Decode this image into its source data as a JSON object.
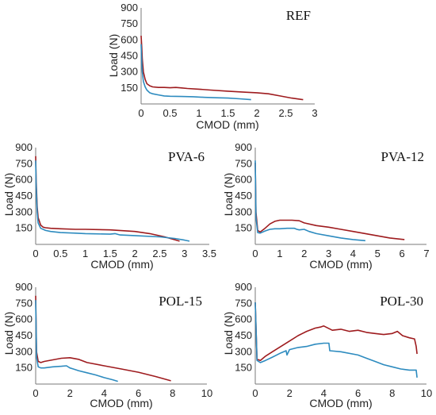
{
  "chart_data": [
    {
      "type": "line",
      "title": "REF",
      "xlabel": "CMOD (mm)",
      "ylabel": "Load (N)",
      "xlim": [
        0,
        3
      ],
      "ylim": [
        0,
        900
      ],
      "xticks": [
        "0",
        "0.5",
        "1",
        "1.5",
        "2",
        "2.5",
        "3"
      ],
      "yticks": [
        "900",
        "750",
        "600",
        "450",
        "300",
        "150"
      ],
      "grid": false,
      "series": [
        {
          "color": "#9e1b1e",
          "x": [
            0,
            0.01,
            0.02,
            0.04,
            0.07,
            0.1,
            0.15,
            0.2,
            0.3,
            0.4,
            0.5,
            0.6,
            0.7,
            0.8,
            1.0,
            1.2,
            1.5,
            1.8,
            2.0,
            2.2,
            2.4,
            2.6,
            2.8
          ],
          "y": [
            640,
            550,
            420,
            300,
            230,
            190,
            170,
            160,
            155,
            155,
            152,
            155,
            150,
            145,
            138,
            130,
            120,
            110,
            105,
            95,
            75,
            55,
            40
          ]
        },
        {
          "color": "#2d8bbf",
          "x": [
            0,
            0.01,
            0.02,
            0.04,
            0.07,
            0.1,
            0.15,
            0.2,
            0.3,
            0.4,
            0.5,
            0.7,
            0.9,
            1.1,
            1.3,
            1.5,
            1.7,
            1.9
          ],
          "y": [
            560,
            420,
            300,
            210,
            160,
            130,
            105,
            95,
            85,
            75,
            72,
            70,
            68,
            62,
            58,
            55,
            48,
            40
          ]
        }
      ]
    },
    {
      "type": "line",
      "title": "PVA-6",
      "xlabel": "CMOD (mm)",
      "ylabel": "Load (N)",
      "xlim": [
        0,
        3.5
      ],
      "ylim": [
        0,
        900
      ],
      "xticks": [
        "0",
        "0.5",
        "1",
        "1.5",
        "2",
        "2.5",
        "3",
        "3.5"
      ],
      "yticks": [
        "900",
        "750",
        "600",
        "450",
        "300",
        "150"
      ],
      "grid": false,
      "series": [
        {
          "color": "#9e1b1e",
          "x": [
            0,
            0.01,
            0.03,
            0.05,
            0.1,
            0.15,
            0.2,
            0.3,
            0.5,
            0.8,
            1.0,
            1.5,
            2.0,
            2.3,
            2.6,
            2.9
          ],
          "y": [
            820,
            600,
            350,
            250,
            180,
            160,
            155,
            150,
            145,
            140,
            140,
            135,
            120,
            100,
            70,
            30
          ]
        },
        {
          "color": "#2d8bbf",
          "x": [
            0,
            0.01,
            0.03,
            0.05,
            0.1,
            0.2,
            0.3,
            0.5,
            0.8,
            1.0,
            1.2,
            1.5,
            1.6,
            1.7,
            2.0,
            2.5,
            2.8,
            3.0,
            3.1
          ],
          "y": [
            780,
            550,
            300,
            200,
            150,
            130,
            120,
            110,
            105,
            100,
            98,
            95,
            100,
            88,
            82,
            70,
            55,
            40,
            30
          ]
        }
      ]
    },
    {
      "type": "line",
      "title": "PVA-12",
      "xlabel": "CMOD (mm)",
      "ylabel": "Load (N)",
      "xlim": [
        0,
        7
      ],
      "ylim": [
        0,
        900
      ],
      "xticks": [
        "0",
        "1",
        "2",
        "3",
        "4",
        "5",
        "6",
        "7"
      ],
      "yticks": [
        "900",
        "750",
        "600",
        "450",
        "300",
        "150"
      ],
      "grid": false,
      "series": [
        {
          "color": "#9e1b1e",
          "x": [
            0,
            0.03,
            0.1,
            0.2,
            0.4,
            0.6,
            0.8,
            1.0,
            1.2,
            1.5,
            1.8,
            2.0,
            2.5,
            3.0,
            3.5,
            4.0,
            4.5,
            5.0,
            5.5,
            6.1
          ],
          "y": [
            760,
            300,
            130,
            115,
            150,
            190,
            215,
            225,
            225,
            225,
            220,
            200,
            175,
            160,
            140,
            120,
            100,
            80,
            60,
            45
          ]
        },
        {
          "color": "#2d8bbf",
          "x": [
            0,
            0.03,
            0.1,
            0.2,
            0.4,
            0.6,
            0.8,
            1.0,
            1.3,
            1.6,
            1.7,
            1.8,
            2.0,
            2.2,
            2.5,
            3.0,
            3.5,
            4.0,
            4.5
          ],
          "y": [
            780,
            250,
            110,
            105,
            125,
            140,
            145,
            145,
            150,
            150,
            140,
            135,
            140,
            120,
            100,
            80,
            60,
            45,
            35
          ]
        }
      ]
    },
    {
      "type": "line",
      "title": "POL-15",
      "xlabel": "CMOD (mm)",
      "ylabel": "Load (N)",
      "xlim": [
        0,
        10
      ],
      "ylim": [
        0,
        900
      ],
      "xticks": [
        "0",
        "2",
        "4",
        "6",
        "8",
        "10"
      ],
      "yticks": [
        "900",
        "750",
        "600",
        "450",
        "300",
        "150"
      ],
      "grid": false,
      "series": [
        {
          "color": "#9e1b1e",
          "x": [
            0,
            0.05,
            0.15,
            0.3,
            0.5,
            1.0,
            1.5,
            2.0,
            2.5,
            3.0,
            4.0,
            5.0,
            6.0,
            7.0,
            7.9
          ],
          "y": [
            820,
            300,
            210,
            200,
            210,
            225,
            240,
            245,
            230,
            200,
            170,
            140,
            110,
            70,
            30
          ]
        },
        {
          "color": "#2d8bbf",
          "x": [
            0,
            0.05,
            0.15,
            0.3,
            0.5,
            1.0,
            1.5,
            1.8,
            2.0,
            2.2,
            2.5,
            3.0,
            3.5,
            4.0,
            4.5,
            4.8
          ],
          "y": [
            780,
            250,
            160,
            150,
            150,
            160,
            165,
            170,
            150,
            140,
            125,
            105,
            85,
            60,
            40,
            25
          ]
        }
      ]
    },
    {
      "type": "line",
      "title": "POL-30",
      "xlabel": "CMOD (mm)",
      "ylabel": "Load (N)",
      "xlim": [
        0,
        10
      ],
      "ylim": [
        0,
        900
      ],
      "xticks": [
        "0",
        "2",
        "4",
        "6",
        "8",
        "10"
      ],
      "yticks": [
        "900",
        "750",
        "600",
        "450",
        "300",
        "150"
      ],
      "grid": false,
      "series": [
        {
          "color": "#9e1b1e",
          "x": [
            0,
            0.1,
            0.3,
            0.6,
            1.0,
            1.5,
            2.0,
            2.5,
            3.0,
            3.5,
            3.8,
            4.0,
            4.5,
            5.0,
            5.5,
            6.0,
            6.5,
            7.0,
            7.5,
            8.0,
            8.3,
            8.6,
            9.0,
            9.3,
            9.4,
            9.45
          ],
          "y": [
            760,
            230,
            220,
            260,
            300,
            350,
            400,
            450,
            490,
            520,
            530,
            540,
            500,
            510,
            490,
            500,
            480,
            470,
            460,
            470,
            490,
            450,
            430,
            420,
            350,
            280
          ]
        },
        {
          "color": "#2d8bbf",
          "x": [
            0,
            0.1,
            0.3,
            0.6,
            1.0,
            1.5,
            1.8,
            1.85,
            2.0,
            2.5,
            3.0,
            3.5,
            4.0,
            4.3,
            4.35,
            5.0,
            6.0,
            6.5,
            7.0,
            7.5,
            8.0,
            8.5,
            9.0,
            9.4,
            9.45
          ],
          "y": [
            760,
            220,
            200,
            220,
            250,
            290,
            310,
            270,
            320,
            340,
            350,
            370,
            380,
            380,
            310,
            300,
            270,
            240,
            210,
            180,
            160,
            140,
            130,
            130,
            60
          ]
        }
      ]
    }
  ]
}
